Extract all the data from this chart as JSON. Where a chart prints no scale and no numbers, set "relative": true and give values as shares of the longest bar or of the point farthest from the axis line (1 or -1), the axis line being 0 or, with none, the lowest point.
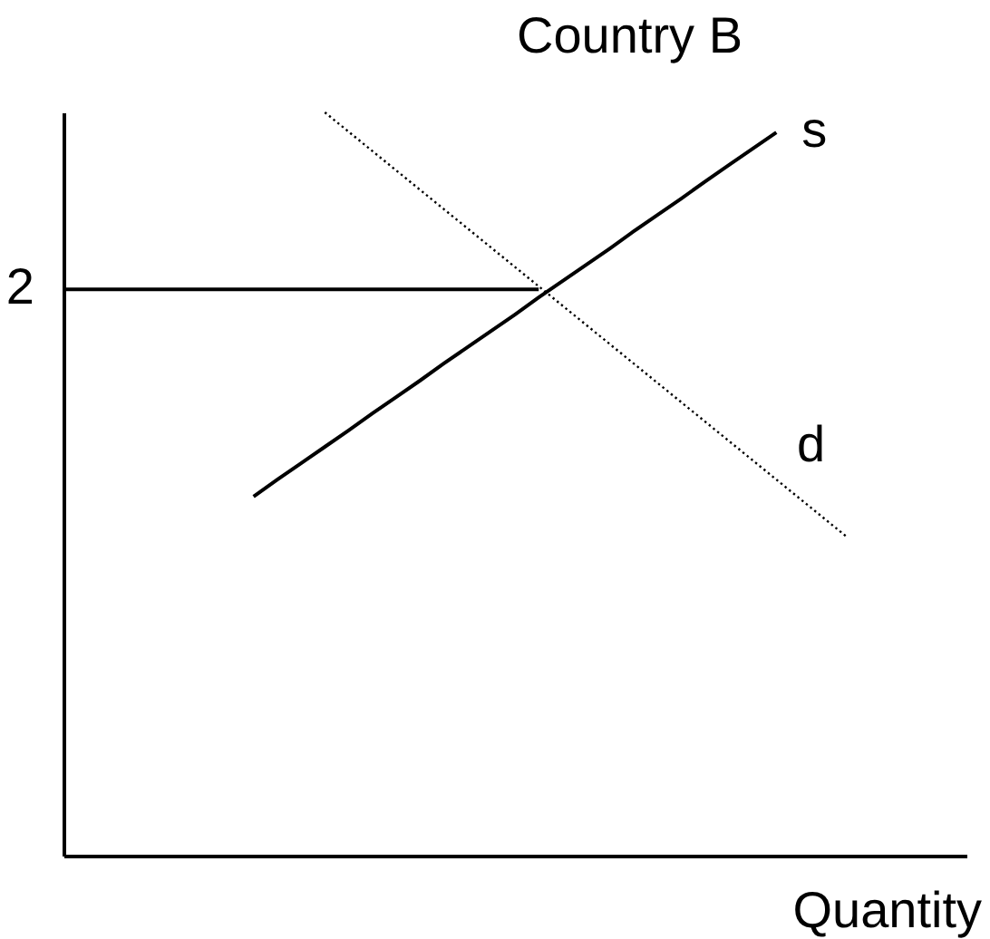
{
  "chart_data": {
    "type": "line",
    "title": "Country B",
    "xlabel": "Quantity",
    "relative": true,
    "categories": [
      null,
      null,
      null,
      null,
      null,
      null,
      null,
      null,
      null,
      null,
      null,
      null,
      null,
      null,
      null,
      null,
      null,
      null,
      null,
      null,
      null,
      null,
      null,
      null,
      null,
      null,
      null,
      null,
      null,
      null,
      null,
      null,
      null,
      null,
      null,
      null,
      null,
      null,
      null
    ],
    "series": [
      {
        "name": "s",
        "color": "#000000",
        "line_style": "solid",
        "values": [
          null,
          null,
          null,
          null,
          null,
          null,
          null,
          null,
          0.483,
          0.506,
          0.528,
          0.55,
          0.572,
          0.595,
          0.617,
          0.639,
          0.662,
          0.684,
          0.706,
          0.728,
          0.751,
          0.773,
          0.795,
          0.817,
          0.84,
          0.862,
          0.884,
          0.907,
          0.929,
          0.951,
          0.973,
          null,
          null,
          null,
          null,
          null,
          null,
          null,
          null
        ]
      },
      {
        "name": "d",
        "color": "#000000",
        "line_style": "dotted",
        "values": [
          null,
          null,
          null,
          null,
          null,
          null,
          null,
          null,
          null,
          null,
          null,
          1,
          0.974,
          0.948,
          0.922,
          0.896,
          0.87,
          0.844,
          0.818,
          0.792,
          0.766,
          0.74,
          0.714,
          0.688,
          0.662,
          0.636,
          0.61,
          0.584,
          0.558,
          0.532,
          0.506,
          0.48,
          0.454,
          0.428,
          null,
          null,
          null,
          null,
          null
        ]
      },
      {
        "name": "2",
        "color": "#000000",
        "line_style": "solid",
        "values": [
          0.762,
          0.762,
          0.762,
          0.762,
          0.762,
          0.762,
          0.762,
          0.762,
          0.762,
          0.762,
          0.762,
          0.762,
          0.762,
          0.762,
          0.762,
          0.762,
          0.762,
          0.762,
          0.762,
          0.762,
          0.762,
          null,
          null,
          null,
          null,
          null,
          null,
          null,
          null,
          null,
          null,
          null,
          null,
          null,
          null,
          null,
          null,
          null,
          null
        ]
      }
    ]
  }
}
